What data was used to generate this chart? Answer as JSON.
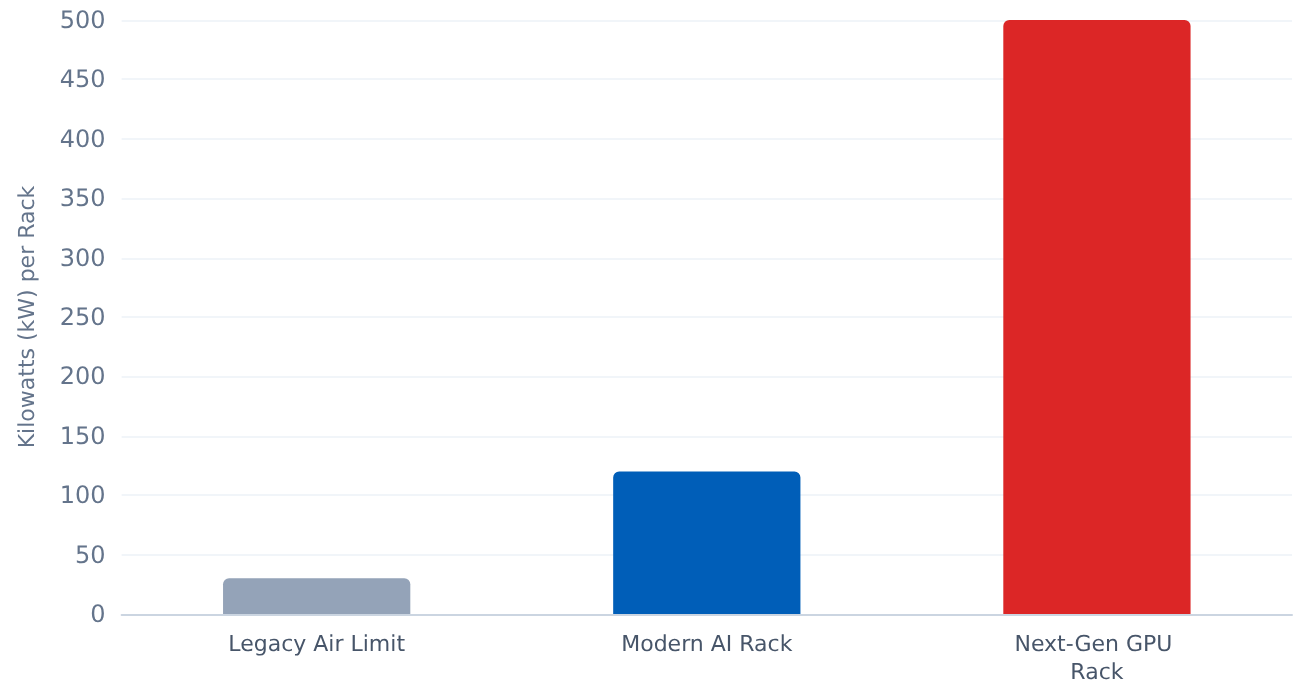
{
  "chart_data": {
    "type": "bar",
    "ylabel": "Kilowatts (kW) per Rack",
    "categories": [
      "Legacy Air Limit",
      "Modern AI Rack",
      "Next-Gen GPU Rack"
    ],
    "values": [
      30,
      120,
      500
    ],
    "colors": [
      "#94a3b8",
      "#005eb8",
      "#dc2626"
    ],
    "ylim": [
      0,
      500
    ],
    "yticks": [
      0,
      50,
      100,
      150,
      200,
      250,
      300,
      350,
      400,
      450,
      500
    ],
    "grid": "y"
  }
}
